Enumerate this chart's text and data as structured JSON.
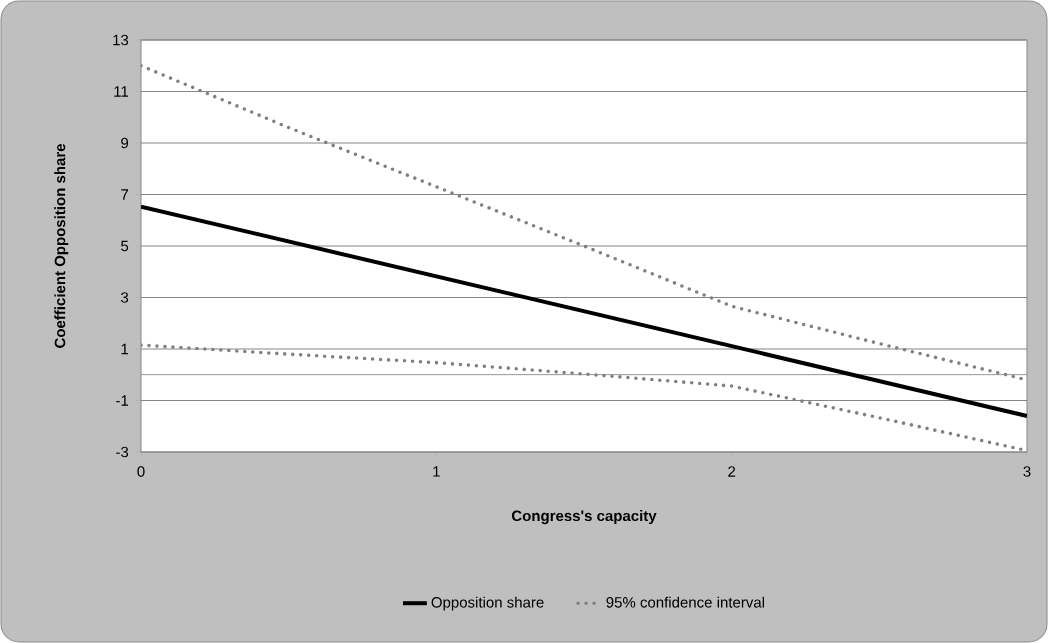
{
  "chart_data": {
    "type": "line",
    "xlabel": "Congress's capacity",
    "ylabel": "Coefficient Opposition share",
    "x": [
      0,
      0.5,
      1,
      1.5,
      2,
      2.5,
      3
    ],
    "series": [
      {
        "name": "Opposition share",
        "color": "#000000",
        "line_style": "solid",
        "x": [
          0,
          3
        ],
        "values": [
          6.53,
          -1.6
        ]
      },
      {
        "name": "95% confidence interval",
        "color": "#808080",
        "line_style": "dotted",
        "values": [
          12.0,
          9.6,
          7.3,
          5.0,
          2.66,
          1.21,
          -0.2
        ]
      },
      {
        "color": "#808080",
        "line_style": "dotted",
        "values": [
          1.15,
          0.8,
          0.47,
          0.03,
          -0.44,
          -1.67,
          -2.95
        ]
      }
    ],
    "xlim": [
      0,
      3
    ],
    "xticks": [
      0,
      1,
      2,
      3
    ],
    "ylim": [
      -3,
      13
    ],
    "yticks": [
      -3,
      -1,
      1,
      3,
      5,
      7,
      9,
      11,
      13
    ],
    "ref_lines": [
      {
        "axis": "y",
        "value": 0,
        "color": "#868686"
      }
    ],
    "grid": "y",
    "legend": "bottom",
    "marker": "none"
  }
}
